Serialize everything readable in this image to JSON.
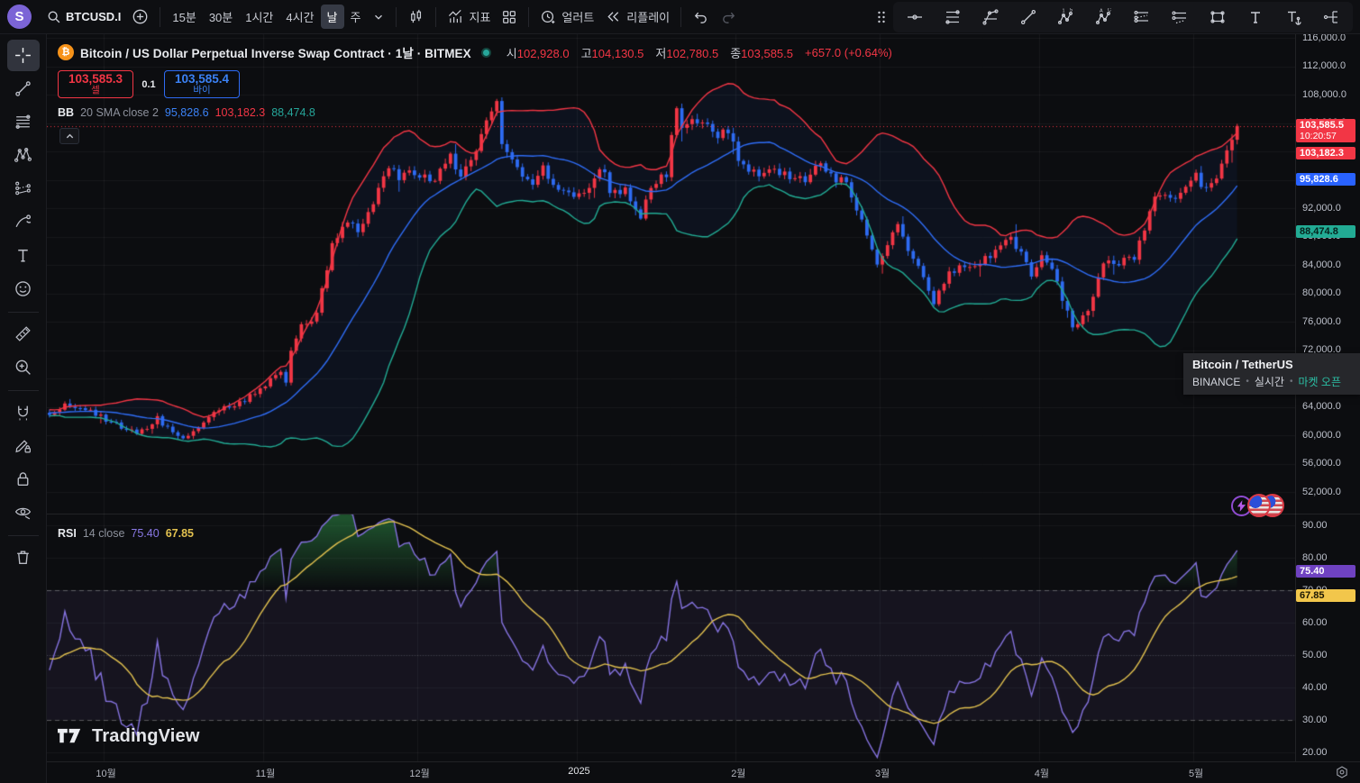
{
  "toolbar": {
    "symbol_search": "BTCUSD.I",
    "timeframes": [
      "15분",
      "30분",
      "1시간",
      "4시간",
      "날",
      "주"
    ],
    "active_timeframe": "날",
    "indicators_label": "지표",
    "alert_label": "얼러트",
    "replay_label": "리플레이",
    "draw_tools": [
      "horizontal-line",
      "horizontal-lines",
      "polyline",
      "trend-line",
      "elliott-wave",
      "abc-pattern",
      "dotted-channel",
      "parallel-channel",
      "rectangle",
      "text",
      "anchored-text",
      "fork"
    ]
  },
  "sidebar": {
    "tools": [
      "crosshair",
      "trend-line",
      "fib-retracement",
      "xabcd-pattern",
      "forecast",
      "brush",
      "text",
      "emoji",
      "ruler",
      "zoom-in",
      "magnet",
      "drawing-lock",
      "lock-all",
      "hide-drawings",
      "trash"
    ],
    "active_tool": "crosshair"
  },
  "symbol_row": {
    "title": "Bitcoin / US Dollar Perpetual Inverse Swap Contract · 1날 · BITMEX",
    "ohlc": [
      {
        "label": "시",
        "value": "102,928.0"
      },
      {
        "label": "고",
        "value": "104,130.5"
      },
      {
        "label": "저",
        "value": "102,780.5"
      },
      {
        "label": "종",
        "value": "103,585.5"
      }
    ],
    "change": "+657.0 (+0.64%)"
  },
  "trade": {
    "sell_price": "103,585.3",
    "sell_label": "셀",
    "spread": "0.1",
    "buy_price": "103,585.4",
    "buy_label": "바이"
  },
  "bb_legend": {
    "name": "BB",
    "params": "20 SMA close 2",
    "basis": "95,828.6",
    "upper": "103,182.3",
    "lower": "88,474.8"
  },
  "rsi_legend": {
    "name": "RSI",
    "params": "14 close",
    "value": "75.40",
    "ma": "67.85"
  },
  "tooltip": {
    "title": "Bitcoin / TetherUS",
    "exchange": "BINANCE",
    "bullet": "•",
    "status": "실시간",
    "market": "마켓 오픈"
  },
  "price_badges": {
    "last": "103,585.5",
    "countdown": "10:20:57",
    "bb_upper": "103,182.3",
    "bb_basis": "95,828.6",
    "bb_lower": "88,474.8"
  },
  "rsi_badges": {
    "value": "75.40",
    "ma": "67.85"
  },
  "logo": "TradingView",
  "colors": {
    "up": "#f23645",
    "down": "#2e6bf2",
    "bb_basis": "#2f6df6",
    "bb_upper": "#f23645",
    "bb_lower": "#22ab94",
    "bb_fill": "rgba(41,98,255,0.06)",
    "rsi_line": "#8673e0",
    "rsi_ma": "#e2c14f",
    "rsi_band_fill": "rgba(135,110,220,0.08)",
    "overbought_fill": "rgba(46,140,70,0.55)",
    "badge_purple": "#6f42c1",
    "badge_yellow": "#f2c64b"
  },
  "chart_data": [
    {
      "type": "candlestick",
      "symbol": "BTCUSD Perpetual Inverse Swap (BITMEX)",
      "interval": "1D",
      "last_price": 103585.5,
      "ylim": [
        48950,
        116900
      ],
      "yticks": [
        52000,
        56000,
        60000,
        64000,
        68000,
        72000,
        76000,
        80000,
        84000,
        88000,
        92000,
        96000,
        100000,
        104000,
        108000,
        112000,
        116000
      ],
      "x_ticks": [
        {
          "day": 11,
          "label": "10월"
        },
        {
          "day": 42,
          "label": "11월"
        },
        {
          "day": 72,
          "label": "12월"
        },
        {
          "day": 103,
          "label": "2025"
        },
        {
          "day": 134,
          "label": "2월"
        },
        {
          "day": 162,
          "label": "3월"
        },
        {
          "day": 193,
          "label": "4월"
        },
        {
          "day": 223,
          "label": "5월"
        }
      ],
      "candle_count": 232,
      "bollinger": {
        "length": 20,
        "mult": 2,
        "basis": 95828.6,
        "upper": 103182.3,
        "lower": 88474.8
      },
      "close_waypoints": [
        [
          0,
          63200
        ],
        [
          4,
          64300
        ],
        [
          9,
          62800
        ],
        [
          13,
          61500
        ],
        [
          17,
          60300
        ],
        [
          21,
          62300
        ],
        [
          25,
          59600
        ],
        [
          29,
          61000
        ],
        [
          33,
          63400
        ],
        [
          37,
          64300
        ],
        [
          41,
          66500
        ],
        [
          45,
          68800
        ],
        [
          46,
          67600
        ],
        [
          47,
          72300
        ],
        [
          49,
          75100
        ],
        [
          52,
          76700
        ],
        [
          55,
          87400
        ],
        [
          58,
          90400
        ],
        [
          60,
          88000
        ],
        [
          63,
          92100
        ],
        [
          66,
          98300
        ],
        [
          68,
          95900
        ],
        [
          70,
          97500
        ],
        [
          72,
          96400
        ],
        [
          75,
          95900
        ],
        [
          78,
          99000
        ],
        [
          80,
          96700
        ],
        [
          82,
          98800
        ],
        [
          85,
          104100
        ],
        [
          87,
          106300
        ],
        [
          88,
          101300
        ],
        [
          91,
          97500
        ],
        [
          94,
          95000
        ],
        [
          96,
          97800
        ],
        [
          99,
          94300
        ],
        [
          102,
          93400
        ],
        [
          105,
          95300
        ],
        [
          107,
          98200
        ],
        [
          109,
          94800
        ],
        [
          112,
          94300
        ],
        [
          115,
          91200
        ],
        [
          117,
          94500
        ],
        [
          120,
          97100
        ],
        [
          122,
          106000
        ],
        [
          123,
          103700
        ],
        [
          126,
          104800
        ],
        [
          129,
          102600
        ],
        [
          132,
          102100
        ],
        [
          135,
          97800
        ],
        [
          138,
          96600
        ],
        [
          141,
          97600
        ],
        [
          144,
          96500
        ],
        [
          147,
          95800
        ],
        [
          150,
          97900
        ],
        [
          153,
          96100
        ],
        [
          155,
          95900
        ],
        [
          157,
          91600
        ],
        [
          159,
          88200
        ],
        [
          161,
          84700
        ],
        [
          163,
          86100
        ],
        [
          165,
          90100
        ],
        [
          166,
          87300
        ],
        [
          169,
          83900
        ],
        [
          172,
          78600
        ],
        [
          175,
          82600
        ],
        [
          178,
          83900
        ],
        [
          181,
          84400
        ],
        [
          184,
          86100
        ],
        [
          187,
          87400
        ],
        [
          189,
          85800
        ],
        [
          191,
          82600
        ],
        [
          193,
          85200
        ],
        [
          195,
          83300
        ],
        [
          197,
          79200
        ],
        [
          199,
          74700
        ],
        [
          201,
          76300
        ],
        [
          203,
          79600
        ],
        [
          205,
          83800
        ],
        [
          208,
          84500
        ],
        [
          211,
          85100
        ],
        [
          213,
          88500
        ],
        [
          215,
          93400
        ],
        [
          217,
          93900
        ],
        [
          219,
          93600
        ],
        [
          221,
          94700
        ],
        [
          223,
          96500
        ],
        [
          225,
          94200
        ],
        [
          227,
          96900
        ],
        [
          229,
          99800
        ],
        [
          230,
          102200
        ],
        [
          231,
          103585.5
        ]
      ]
    },
    {
      "type": "line",
      "name": "RSI",
      "length": 14,
      "value": 75.4,
      "ma_value": 67.85,
      "ylim": [
        17,
        94
      ],
      "yticks": [
        20,
        30,
        40,
        50,
        60,
        70,
        80,
        90
      ],
      "bands": [
        70,
        50,
        30
      ]
    }
  ]
}
